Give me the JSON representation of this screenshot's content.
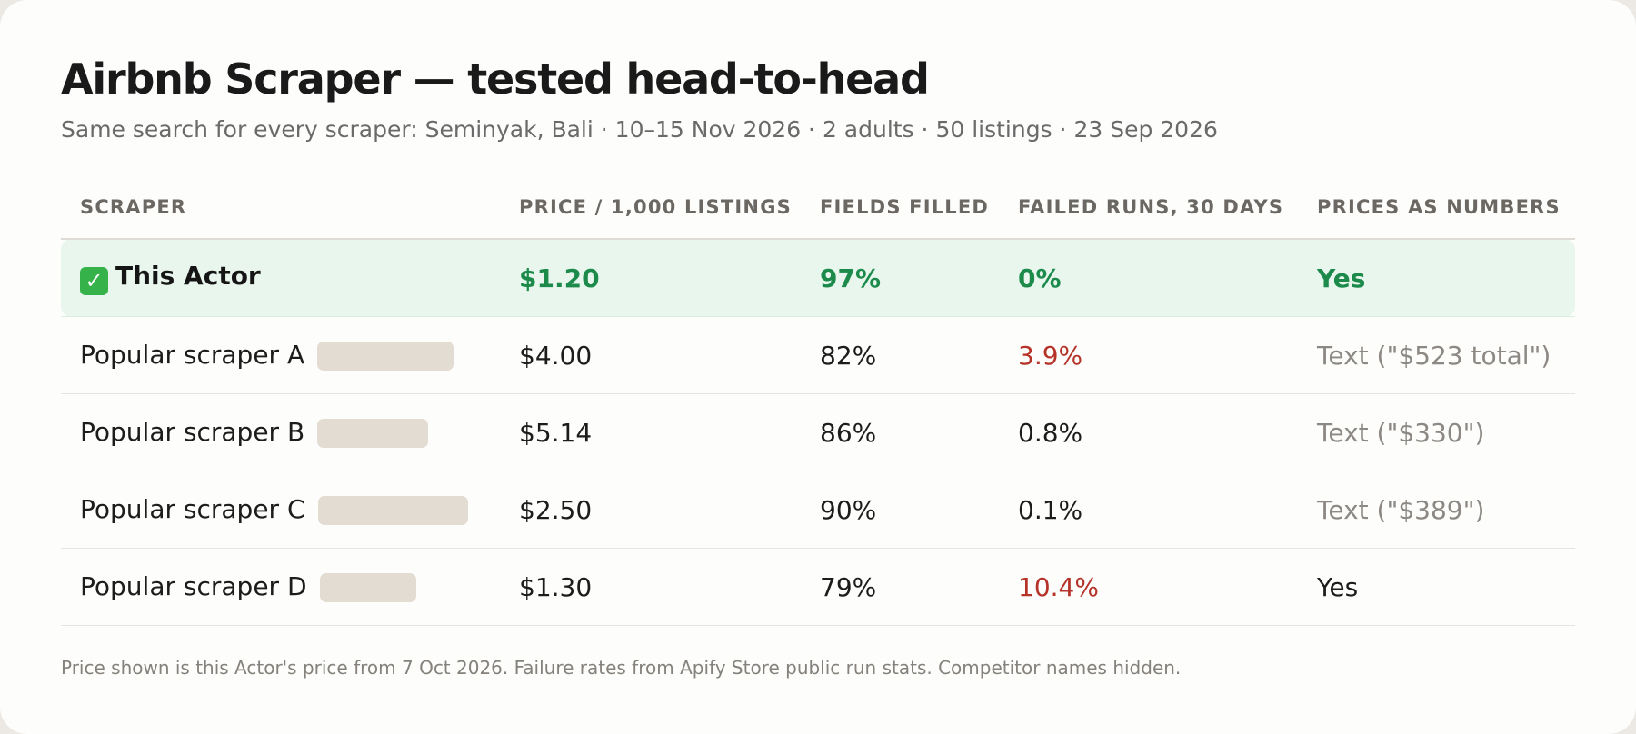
{
  "header": {
    "title": "Airbnb Scraper — tested head-to-head",
    "subtitle": "Same search for every scraper: Seminyak, Bali · 10–15 Nov 2026 · 2 adults · 50 listings · 23 Sep 2026"
  },
  "table": {
    "columns": [
      "SCRAPER",
      "PRICE / 1,000 LISTINGS",
      "FIELDS FILLED",
      "FAILED RUNS, 30 DAYS",
      "PRICES AS NUMBERS"
    ],
    "highlight_row": {
      "icon": "check-mark-icon",
      "icon_glyph": "✓",
      "scraper": "This Actor",
      "price": "$1.20",
      "fields": "97%",
      "failed": "0%",
      "prices_numbers": "Yes"
    },
    "rows": [
      {
        "scraper": "Popular scraper A",
        "price": "$4.00",
        "fields": "82%",
        "failed": "3.9%",
        "failed_status": "bad",
        "prices_numbers": "Text (\"$523 total\")",
        "prices_numbers_status": "muted"
      },
      {
        "scraper": "Popular scraper B",
        "price": "$5.14",
        "fields": "86%",
        "failed": "0.8%",
        "failed_status": "normal",
        "prices_numbers": "Text (\"$330\")",
        "prices_numbers_status": "muted"
      },
      {
        "scraper": "Popular scraper C",
        "price": "$2.50",
        "fields": "90%",
        "failed": "0.1%",
        "failed_status": "normal",
        "prices_numbers": "Text (\"$389\")",
        "prices_numbers_status": "muted"
      },
      {
        "scraper": "Popular scraper D",
        "price": "$1.30",
        "fields": "79%",
        "failed": "10.4%",
        "failed_status": "bad",
        "prices_numbers": "Yes",
        "prices_numbers_status": "normal"
      }
    ]
  },
  "footnote": "Price shown is this Actor's price from 7 Oct 2026. Failure rates from Apify Store public run stats. Competitor names hidden.",
  "colors": {
    "highlight_bg": "#e8f6ee",
    "highlight_text": "#1b8a4a",
    "bad": "#b53329",
    "muted": "#8c8883",
    "redaction": "#e2dcd3"
  }
}
